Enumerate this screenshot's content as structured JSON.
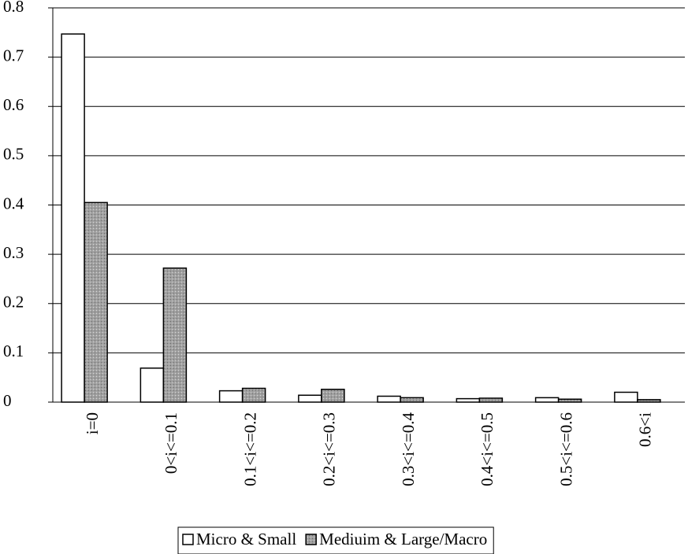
{
  "chart_data": {
    "type": "bar",
    "categories": [
      "i=0",
      "0<i<=0.1",
      "0.1<i<=0.2",
      "0.2<i<=0.3",
      "0.3<i<=0.4",
      "0.4<i<=0.5",
      "0.5<i<=0.6",
      "0.6<i"
    ],
    "series": [
      {
        "name": "Micro & Small",
        "color": "#ffffff",
        "values": [
          0.747,
          0.069,
          0.023,
          0.014,
          0.012,
          0.007,
          0.009,
          0.02
        ]
      },
      {
        "name": "Mediuim & Large/Macro",
        "color": "#a0a0a0",
        "values": [
          0.405,
          0.272,
          0.028,
          0.026,
          0.009,
          0.008,
          0.006,
          0.005
        ]
      }
    ],
    "ylim": [
      0,
      0.8
    ],
    "yticks": [
      0,
      0.1,
      0.2,
      0.3,
      0.4,
      0.5,
      0.6,
      0.7,
      0.8
    ],
    "grid": true,
    "legend": "bottom"
  }
}
